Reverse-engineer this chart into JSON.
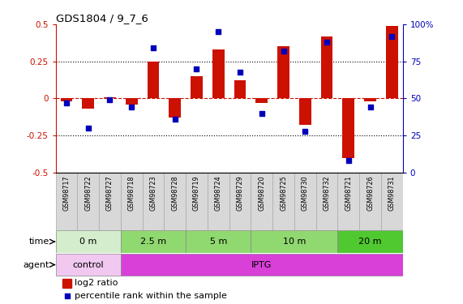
{
  "title": "GDS1804 / 9_7_6",
  "samples": [
    "GSM98717",
    "GSM98722",
    "GSM98727",
    "GSM98718",
    "GSM98723",
    "GSM98728",
    "GSM98719",
    "GSM98724",
    "GSM98729",
    "GSM98720",
    "GSM98725",
    "GSM98730",
    "GSM98732",
    "GSM98721",
    "GSM98726",
    "GSM98731"
  ],
  "log2_ratio": [
    -0.02,
    -0.07,
    0.01,
    -0.04,
    0.25,
    -0.13,
    0.15,
    0.33,
    0.12,
    -0.03,
    0.35,
    -0.18,
    0.42,
    -0.4,
    -0.02,
    0.49
  ],
  "pct_rank": [
    47,
    30,
    49,
    44,
    84,
    36,
    70,
    95,
    68,
    40,
    82,
    28,
    88,
    8,
    44,
    92
  ],
  "time_groups": [
    {
      "label": "0 m",
      "start": 0,
      "end": 3,
      "color": "#d4edcc"
    },
    {
      "label": "2.5 m",
      "start": 3,
      "end": 6,
      "color": "#90d870"
    },
    {
      "label": "5 m",
      "start": 6,
      "end": 9,
      "color": "#90d870"
    },
    {
      "label": "10 m",
      "start": 9,
      "end": 13,
      "color": "#90d870"
    },
    {
      "label": "20 m",
      "start": 13,
      "end": 16,
      "color": "#50c830"
    }
  ],
  "agent_groups": [
    {
      "label": "control",
      "start": 0,
      "end": 3,
      "color": "#f0c8f0"
    },
    {
      "label": "IPTG",
      "start": 3,
      "end": 16,
      "color": "#d840d8"
    }
  ],
  "bar_color": "#cc1100",
  "dot_color": "#0000bb",
  "ylim": [
    -0.5,
    0.5
  ],
  "y2lim": [
    0,
    100
  ],
  "yticks": [
    -0.5,
    -0.25,
    0.0,
    0.25,
    0.5
  ],
  "y2ticks": [
    0,
    25,
    50,
    75,
    100
  ],
  "hlines": [
    -0.25,
    0.25
  ],
  "zero_color": "#cc1100",
  "dot_line_color": "#000000",
  "label_bg": "#d8d8d8"
}
